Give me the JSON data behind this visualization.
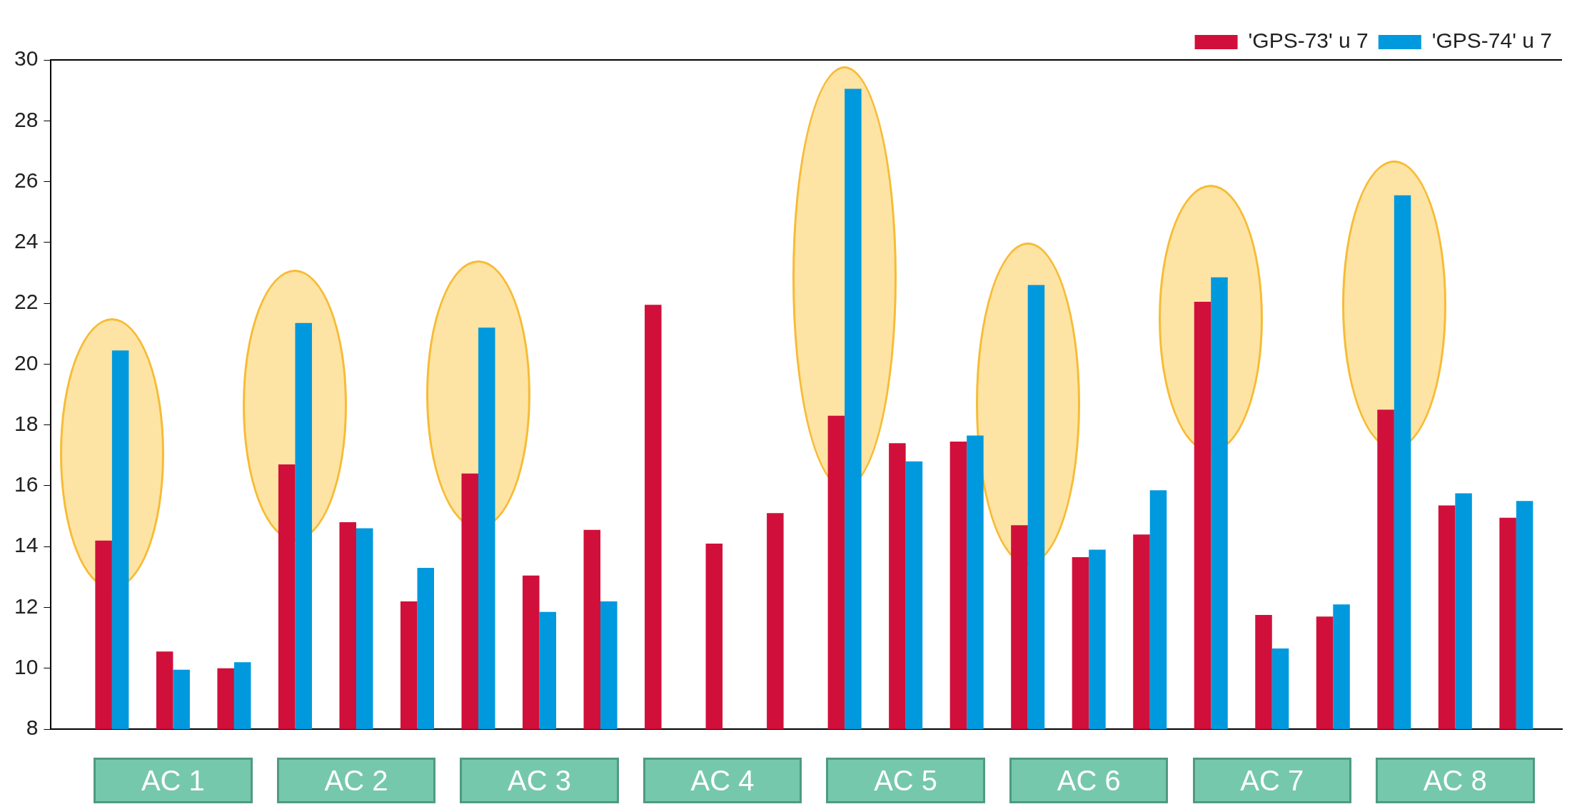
{
  "chart_data": {
    "type": "bar",
    "categories": [
      null,
      "AC 1",
      null,
      null,
      "AC 2",
      null,
      null,
      "AC 3",
      null,
      null,
      "AC 4",
      null,
      null,
      "AC 5",
      null,
      null,
      "AC 6",
      null,
      null,
      "AC 7",
      null,
      null,
      "AC 8",
      null
    ],
    "series": [
      {
        "name": "'GPS-73' u 7",
        "color": "#d0103a",
        "values": [
          14.2,
          10.55,
          10.0,
          16.7,
          14.8,
          12.2,
          16.4,
          13.05,
          14.55,
          21.95,
          14.1,
          15.1,
          18.3,
          17.4,
          17.45,
          14.7,
          13.65,
          14.4,
          22.05,
          11.75,
          11.7,
          18.5,
          15.35,
          14.95
        ]
      },
      {
        "name": "'GPS-74' u 7",
        "color": "#0099dd",
        "values": [
          20.45,
          9.95,
          10.2,
          21.35,
          14.6,
          13.3,
          21.2,
          11.85,
          12.2,
          null,
          null,
          null,
          29.05,
          16.8,
          17.65,
          22.6,
          13.9,
          15.85,
          22.85,
          10.65,
          12.1,
          25.55,
          15.75,
          15.5
        ]
      }
    ],
    "ylim": [
      8,
      30
    ],
    "yticks": [
      8,
      10,
      12,
      14,
      16,
      18,
      20,
      22,
      24,
      26,
      28,
      30
    ],
    "grid": false,
    "legend": "top right"
  }
}
